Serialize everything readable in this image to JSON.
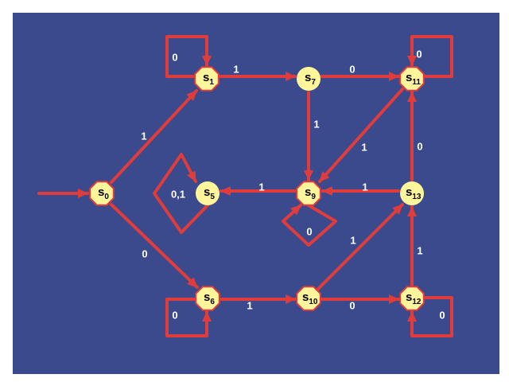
{
  "colors": {
    "background": "#3a4a8c",
    "edge": "#e03c3c",
    "state_fill": "#fff59a",
    "state_stroke": "#e03c3c",
    "label": "#ffffff",
    "state_text": "#000000"
  },
  "states": [
    {
      "id": "s0",
      "letter": "s",
      "sub": "0",
      "shape": "octagon"
    },
    {
      "id": "s1",
      "letter": "s",
      "sub": "1",
      "shape": "octagon"
    },
    {
      "id": "s5",
      "letter": "s",
      "sub": "5",
      "shape": "circle"
    },
    {
      "id": "s6",
      "letter": "s",
      "sub": "6",
      "shape": "octagon"
    },
    {
      "id": "s7",
      "letter": "s",
      "sub": "7",
      "shape": "circle"
    },
    {
      "id": "s9",
      "letter": "s",
      "sub": "9",
      "shape": "octagon"
    },
    {
      "id": "s10",
      "letter": "s",
      "sub": "10",
      "shape": "octagon"
    },
    {
      "id": "s11",
      "letter": "s",
      "sub": "11",
      "shape": "octagon"
    },
    {
      "id": "s12",
      "letter": "s",
      "sub": "12",
      "shape": "octagon"
    },
    {
      "id": "s13",
      "letter": "s",
      "sub": "13",
      "shape": "circle"
    }
  ],
  "initial_state": "s0",
  "transitions": [
    {
      "from": "s0",
      "to": "s1",
      "label": "1"
    },
    {
      "from": "s0",
      "to": "s6",
      "label": "0"
    },
    {
      "from": "s1",
      "to": "s1",
      "label": "0"
    },
    {
      "from": "s1",
      "to": "s7",
      "label": "1"
    },
    {
      "from": "s7",
      "to": "s11",
      "label": "0"
    },
    {
      "from": "s7",
      "to": "s9",
      "label": "1"
    },
    {
      "from": "s11",
      "to": "s11",
      "label": "0"
    },
    {
      "from": "s11",
      "to": "s9",
      "label": "1"
    },
    {
      "from": "s13",
      "to": "s11",
      "label": "0"
    },
    {
      "from": "s13",
      "to": "s9",
      "label": "1"
    },
    {
      "from": "s9",
      "to": "s5",
      "label": "1"
    },
    {
      "from": "s9",
      "to": "s9",
      "label": "0"
    },
    {
      "from": "s5",
      "to": "s5",
      "label": "0,1"
    },
    {
      "from": "s6",
      "to": "s6",
      "label": "0"
    },
    {
      "from": "s6",
      "to": "s10",
      "label": "1"
    },
    {
      "from": "s10",
      "to": "s12",
      "label": "0"
    },
    {
      "from": "s10",
      "to": "s13",
      "label": "1"
    },
    {
      "from": "s12",
      "to": "s12",
      "label": "0"
    },
    {
      "from": "s12",
      "to": "s13",
      "label": "1"
    }
  ]
}
